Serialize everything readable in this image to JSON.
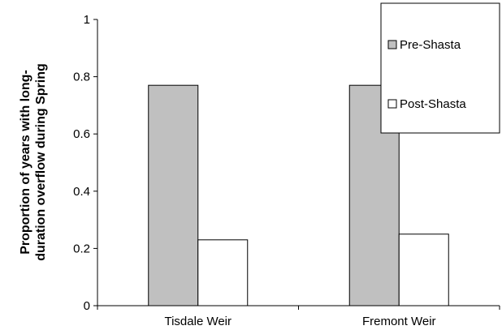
{
  "chart_data": {
    "type": "bar",
    "title": "",
    "xlabel": "",
    "ylabel_lines": [
      "Proportion of years with long-",
      "duration overflow during Spring"
    ],
    "categories": [
      "Tisdale Weir",
      "Fremont Weir"
    ],
    "series": [
      {
        "name": "Pre-Shasta",
        "values": [
          0.77,
          0.77
        ],
        "color": "#c0c0c0"
      },
      {
        "name": "Post-Shasta",
        "values": [
          0.23,
          0.25
        ],
        "color": "#ffffff"
      }
    ],
    "ylim": [
      0,
      1
    ],
    "yticks": [
      "0",
      "0.2",
      "0.4",
      "0.6",
      "0.8",
      "1"
    ],
    "ytick_values": [
      0,
      0.2,
      0.4,
      0.6,
      0.8,
      1
    ],
    "grid": false,
    "legend_position": "top-right",
    "bar_outline_color": "#000000"
  }
}
